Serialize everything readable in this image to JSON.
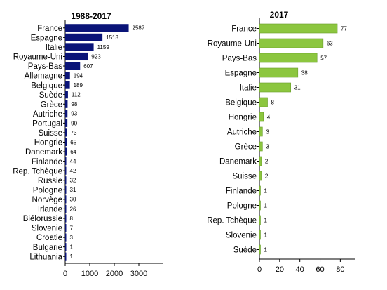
{
  "colors": {
    "left_bar": "#0a1478",
    "right_bar": "#8cc63f",
    "right_bar_edge": "#6a9e2c",
    "axis": "#000000",
    "text": "#000000"
  },
  "chart_data": [
    {
      "type": "bar",
      "orientation": "horizontal",
      "title": "1988-2017",
      "categories": [
        "France",
        "Espagne",
        "Italie",
        "Royaume-Uni",
        "Pays-Bas",
        "Allemagne",
        "Belgique",
        "Suède",
        "Grèce",
        "Autriche",
        "Portugal",
        "Suisse",
        "Hongrie",
        "Danemark",
        "Finlande",
        "Rep. Tchèque",
        "Russie",
        "Pologne",
        "Norvège",
        "Irlande",
        "Biélorussie",
        "Slovenie",
        "Croatie",
        "Bulgarie",
        "Lithuania"
      ],
      "values": [
        2587,
        1518,
        1159,
        923,
        607,
        194,
        189,
        112,
        98,
        93,
        90,
        73,
        65,
        64,
        44,
        42,
        32,
        31,
        30,
        26,
        8,
        7,
        3,
        1,
        1
      ],
      "value_labels": [
        "2587",
        "1518",
        "1159",
        "923",
        "607",
        "194",
        "189",
        "112",
        "98",
        "93",
        "90",
        "73",
        "65",
        "64",
        "44",
        "42",
        "32",
        "31",
        "30",
        "26",
        "8",
        "7",
        "3",
        "1",
        "1"
      ],
      "xlim": [
        0,
        4000
      ],
      "xticks": [
        0,
        1000,
        2000,
        3000
      ],
      "xtick_labels": [
        "0",
        "1000",
        "2000",
        "3000"
      ],
      "grid": false,
      "legend": "none"
    },
    {
      "type": "bar",
      "orientation": "horizontal",
      "title": "2017",
      "categories": [
        "France",
        "Royaume-Uni",
        "Pays-Bas",
        "Espagne",
        "Italie",
        "Belgique",
        "Hongrie",
        "Autriche",
        "Grèce",
        "Danemark",
        "Suisse",
        "Finlande",
        "Pologne",
        "Rep. Tchèque",
        "Slovenie",
        "Suède"
      ],
      "values": [
        77,
        63,
        57,
        38,
        31,
        8,
        4,
        3,
        3,
        2,
        2,
        1,
        1,
        1,
        1,
        1
      ],
      "value_labels": [
        "77",
        "63",
        "57",
        "38",
        "31",
        "8",
        "4",
        "3",
        "3",
        "2",
        "2",
        "1",
        "1",
        "1",
        "1",
        "1"
      ],
      "xlim": [
        0,
        95
      ],
      "xticks": [
        0,
        20,
        40,
        60,
        80
      ],
      "xtick_labels": [
        "0",
        "20",
        "40",
        "60",
        "80"
      ],
      "grid": false,
      "legend": "none"
    }
  ]
}
